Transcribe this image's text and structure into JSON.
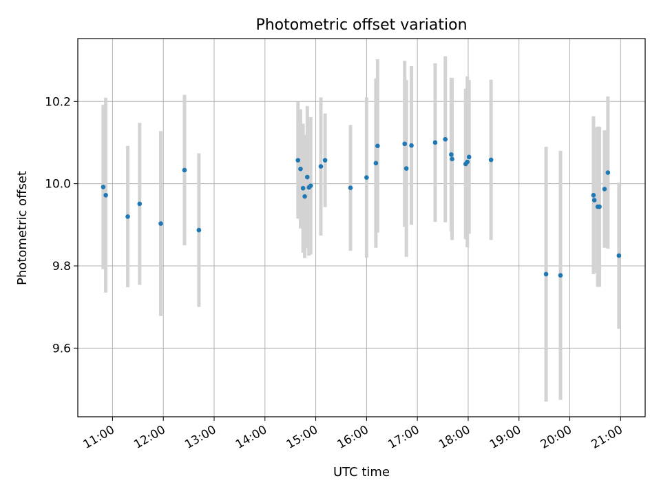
{
  "chart_data": {
    "type": "scatter",
    "title": "Photometric offset variation",
    "xlabel": "UTC time",
    "ylabel": "Photometric offset",
    "x_ticks": [
      "11:00",
      "12:00",
      "13:00",
      "14:00",
      "15:00",
      "16:00",
      "17:00",
      "18:00",
      "19:00",
      "20:00",
      "21:00"
    ],
    "y_ticks": [
      "9.6",
      "9.8",
      "10.0",
      "10.2"
    ],
    "xlim": [
      "10:19",
      "21:29"
    ],
    "ylim": [
      9.433,
      10.353
    ],
    "grid": true,
    "colors": {
      "points": "#1f77b4",
      "error_bars": "#d3d3d3",
      "grid": "#b0b0b0"
    },
    "series": [
      {
        "points": [
          {
            "x": "10:49",
            "y": 9.992,
            "err": 0.2
          },
          {
            "x": "10:52",
            "y": 9.972,
            "err": 0.237
          },
          {
            "x": "11:18",
            "y": 9.92,
            "err": 0.172
          },
          {
            "x": "11:32",
            "y": 9.951,
            "err": 0.197
          },
          {
            "x": "11:57",
            "y": 9.903,
            "err": 0.225
          },
          {
            "x": "12:25",
            "y": 10.033,
            "err": 0.183
          },
          {
            "x": "12:42",
            "y": 9.887,
            "err": 0.187
          },
          {
            "x": "14:39",
            "y": 10.057,
            "err": 0.142
          },
          {
            "x": "14:42",
            "y": 10.036,
            "err": 0.145
          },
          {
            "x": "14:45",
            "y": 9.989,
            "err": 0.157
          },
          {
            "x": "14:47",
            "y": 9.969,
            "err": 0.15
          },
          {
            "x": "14:50",
            "y": 10.016,
            "err": 0.173
          },
          {
            "x": "14:52",
            "y": 9.991,
            "err": 0.166
          },
          {
            "x": "14:54",
            "y": 9.995,
            "err": 0.167
          },
          {
            "x": "15:06",
            "y": 10.042,
            "err": 0.168
          },
          {
            "x": "15:11",
            "y": 10.057,
            "err": 0.114
          },
          {
            "x": "15:41",
            "y": 9.99,
            "err": 0.153
          },
          {
            "x": "16:00",
            "y": 10.015,
            "err": 0.195
          },
          {
            "x": "16:11",
            "y": 10.05,
            "err": 0.206
          },
          {
            "x": "16:13",
            "y": 10.092,
            "err": 0.211
          },
          {
            "x": "16:45",
            "y": 10.097,
            "err": 0.202
          },
          {
            "x": "16:47",
            "y": 10.037,
            "err": 0.215
          },
          {
            "x": "16:53",
            "y": 10.093,
            "err": 0.193
          },
          {
            "x": "17:21",
            "y": 10.1,
            "err": 0.193
          },
          {
            "x": "17:33",
            "y": 10.108,
            "err": 0.202
          },
          {
            "x": "17:40",
            "y": 10.071,
            "err": 0.187
          },
          {
            "x": "17:41",
            "y": 10.06,
            "err": 0.197
          },
          {
            "x": "17:57",
            "y": 10.048,
            "err": 0.183
          },
          {
            "x": "17:59",
            "y": 10.053,
            "err": 0.208
          },
          {
            "x": "18:01",
            "y": 10.065,
            "err": 0.187
          },
          {
            "x": "18:27",
            "y": 10.058,
            "err": 0.195
          },
          {
            "x": "19:32",
            "y": 9.78,
            "err": 0.31
          },
          {
            "x": "19:49",
            "y": 9.777,
            "err": 0.303
          },
          {
            "x": "20:28",
            "y": 9.972,
            "err": 0.192
          },
          {
            "x": "20:29",
            "y": 9.96,
            "err": 0.177
          },
          {
            "x": "20:33",
            "y": 9.944,
            "err": 0.195
          },
          {
            "x": "20:35",
            "y": 9.944,
            "err": 0.195
          },
          {
            "x": "20:41",
            "y": 9.987,
            "err": 0.143
          },
          {
            "x": "20:45",
            "y": 10.027,
            "err": 0.185
          },
          {
            "x": "20:58",
            "y": 9.825,
            "err": 0.178
          }
        ]
      }
    ]
  }
}
